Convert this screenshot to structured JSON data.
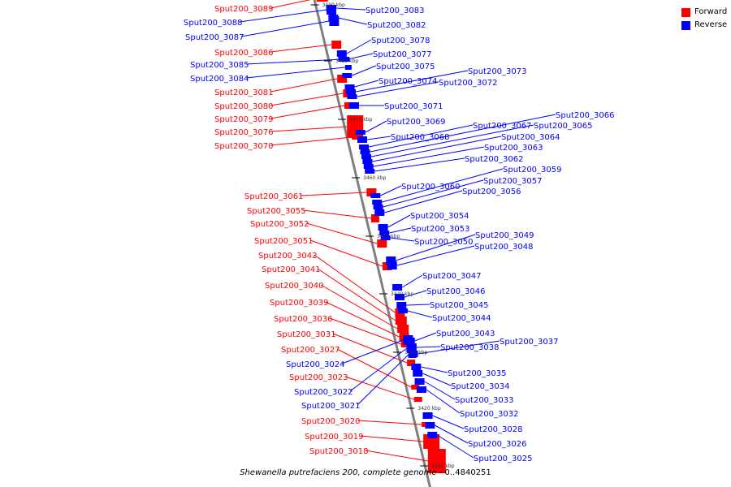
{
  "colors": {
    "forward": "#ff0000",
    "reverse": "#0000ff",
    "backbone": "#7f7f7f",
    "leader_forward": "#ff0000",
    "leader_reverse": "#0000ff"
  },
  "legend": [
    {
      "label": "Forward",
      "color": "#ff0000"
    },
    {
      "label": "Reverse",
      "color": "#0000ff"
    }
  ],
  "caption": {
    "title": "Shewanella putrefaciens 200, complete genome",
    "suffix": " - 0..4840251"
  },
  "ticks": [
    "3490 kbp",
    "3480 kbp",
    "3470 kbp",
    "3460 kbp",
    "3450 kbp",
    "3440 kbp",
    "3430 kbp",
    "3420 kbp",
    "3410 kbp"
  ],
  "forward_genes": [
    "Sput200_3089",
    "Sput200_3086",
    "Sput200_3081",
    "Sput200_3080",
    "Sput200_3079",
    "Sput200_3076",
    "Sput200_3070",
    "Sput200_3061",
    "Sput200_3055",
    "Sput200_3052",
    "Sput200_3051",
    "Sput200_3042",
    "Sput200_3041",
    "Sput200_3040",
    "Sput200_3039",
    "Sput200_3036",
    "Sput200_3031",
    "Sput200_3027",
    "Sput200_3023",
    "Sput200_3020",
    "Sput200_3019",
    "Sput200_3018"
  ],
  "reverse_left_genes": [
    "Sput200_3088",
    "Sput200_3087",
    "Sput200_3085",
    "Sput200_3084",
    "Sput200_3024",
    "Sput200_3022",
    "Sput200_3021"
  ],
  "reverse_right_genes": [
    "Sput200_3083",
    "Sput200_3082",
    "Sput200_3078",
    "Sput200_3077",
    "Sput200_3075",
    "Sput200_3074",
    "Sput200_3073",
    "Sput200_3072",
    "Sput200_3071",
    "Sput200_3069",
    "Sput200_3068",
    "Sput200_3067",
    "Sput200_3066",
    "Sput200_3065",
    "Sput200_3064",
    "Sput200_3063",
    "Sput200_3062",
    "Sput200_3060",
    "Sput200_3059",
    "Sput200_3057",
    "Sput200_3056",
    "Sput200_3054",
    "Sput200_3053",
    "Sput200_3050",
    "Sput200_3049",
    "Sput200_3048",
    "Sput200_3047",
    "Sput200_3046",
    "Sput200_3045",
    "Sput200_3044",
    "Sput200_3043",
    "Sput200_3038",
    "Sput200_3037",
    "Sput200_3035",
    "Sput200_3034",
    "Sput200_3033",
    "Sput200_3032",
    "Sput200_3028",
    "Sput200_3026",
    "Sput200_3025"
  ]
}
